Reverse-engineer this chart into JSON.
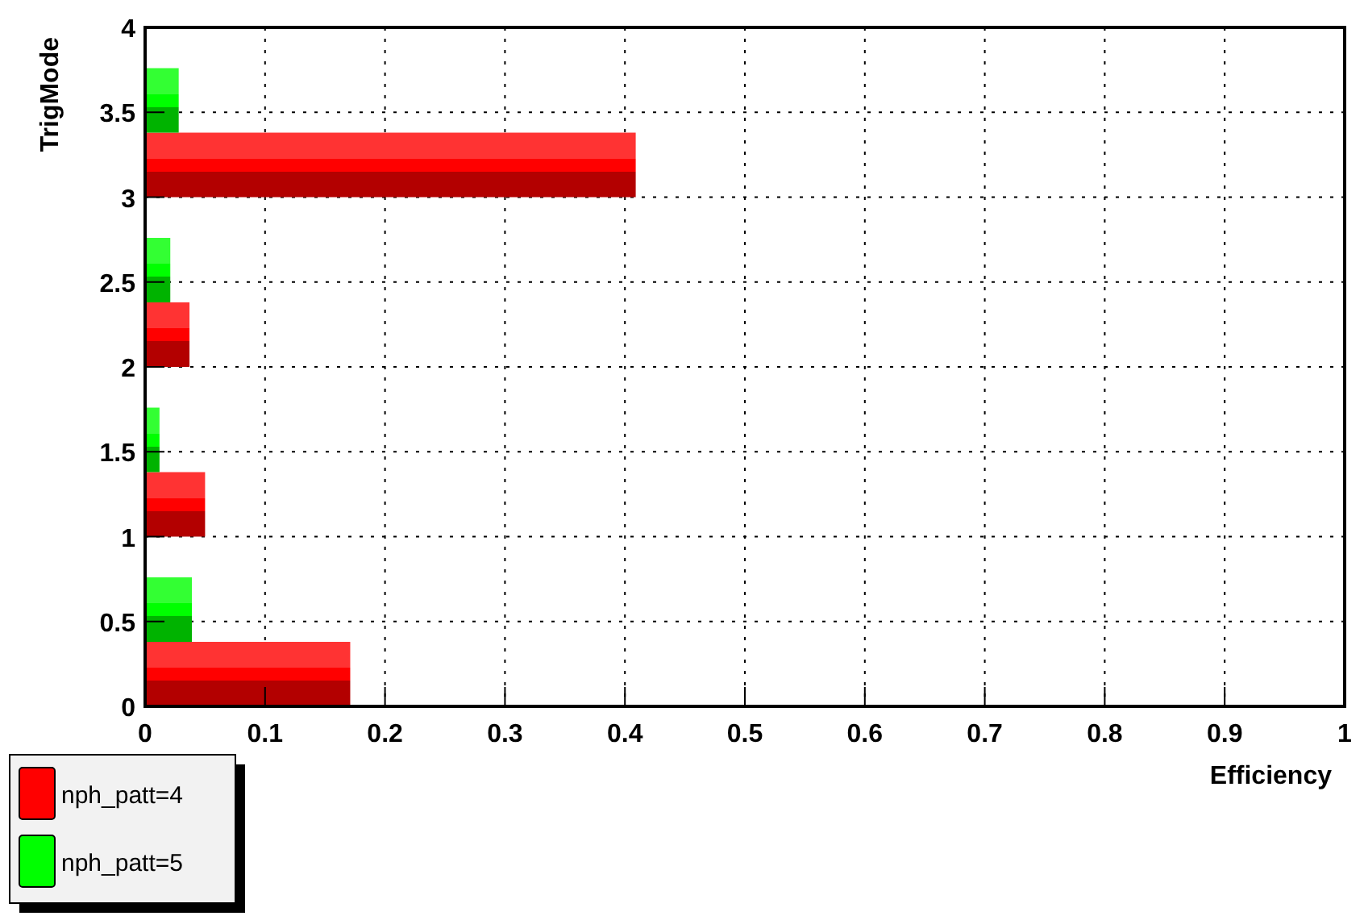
{
  "chart_data": {
    "type": "bar",
    "orientation": "horizontal",
    "xlabel": "Efficiency",
    "ylabel": "TrigMode",
    "series": [
      {
        "name": "nph_patt=4",
        "color": "#ff0000",
        "x": [
          0.19,
          1.19,
          2.19,
          3.19
        ],
        "values": [
          0.171,
          0.05,
          0.037,
          0.409
        ]
      },
      {
        "name": "nph_patt=5",
        "color": "#00ff00",
        "x": [
          0.57,
          1.57,
          2.57,
          3.57
        ],
        "values": [
          0.039,
          0.012,
          0.021,
          0.028
        ]
      }
    ],
    "xlim": [
      0,
      1
    ],
    "xticks": [
      0,
      0.1,
      0.2,
      0.3,
      0.4,
      0.5,
      0.6,
      0.7,
      0.8,
      0.9,
      1
    ],
    "ylim": [
      0,
      4
    ],
    "yticks": [
      0,
      0.5,
      1,
      1.5,
      2,
      2.5,
      3,
      3.5,
      4
    ],
    "grid": true,
    "legend": "bottom left"
  }
}
